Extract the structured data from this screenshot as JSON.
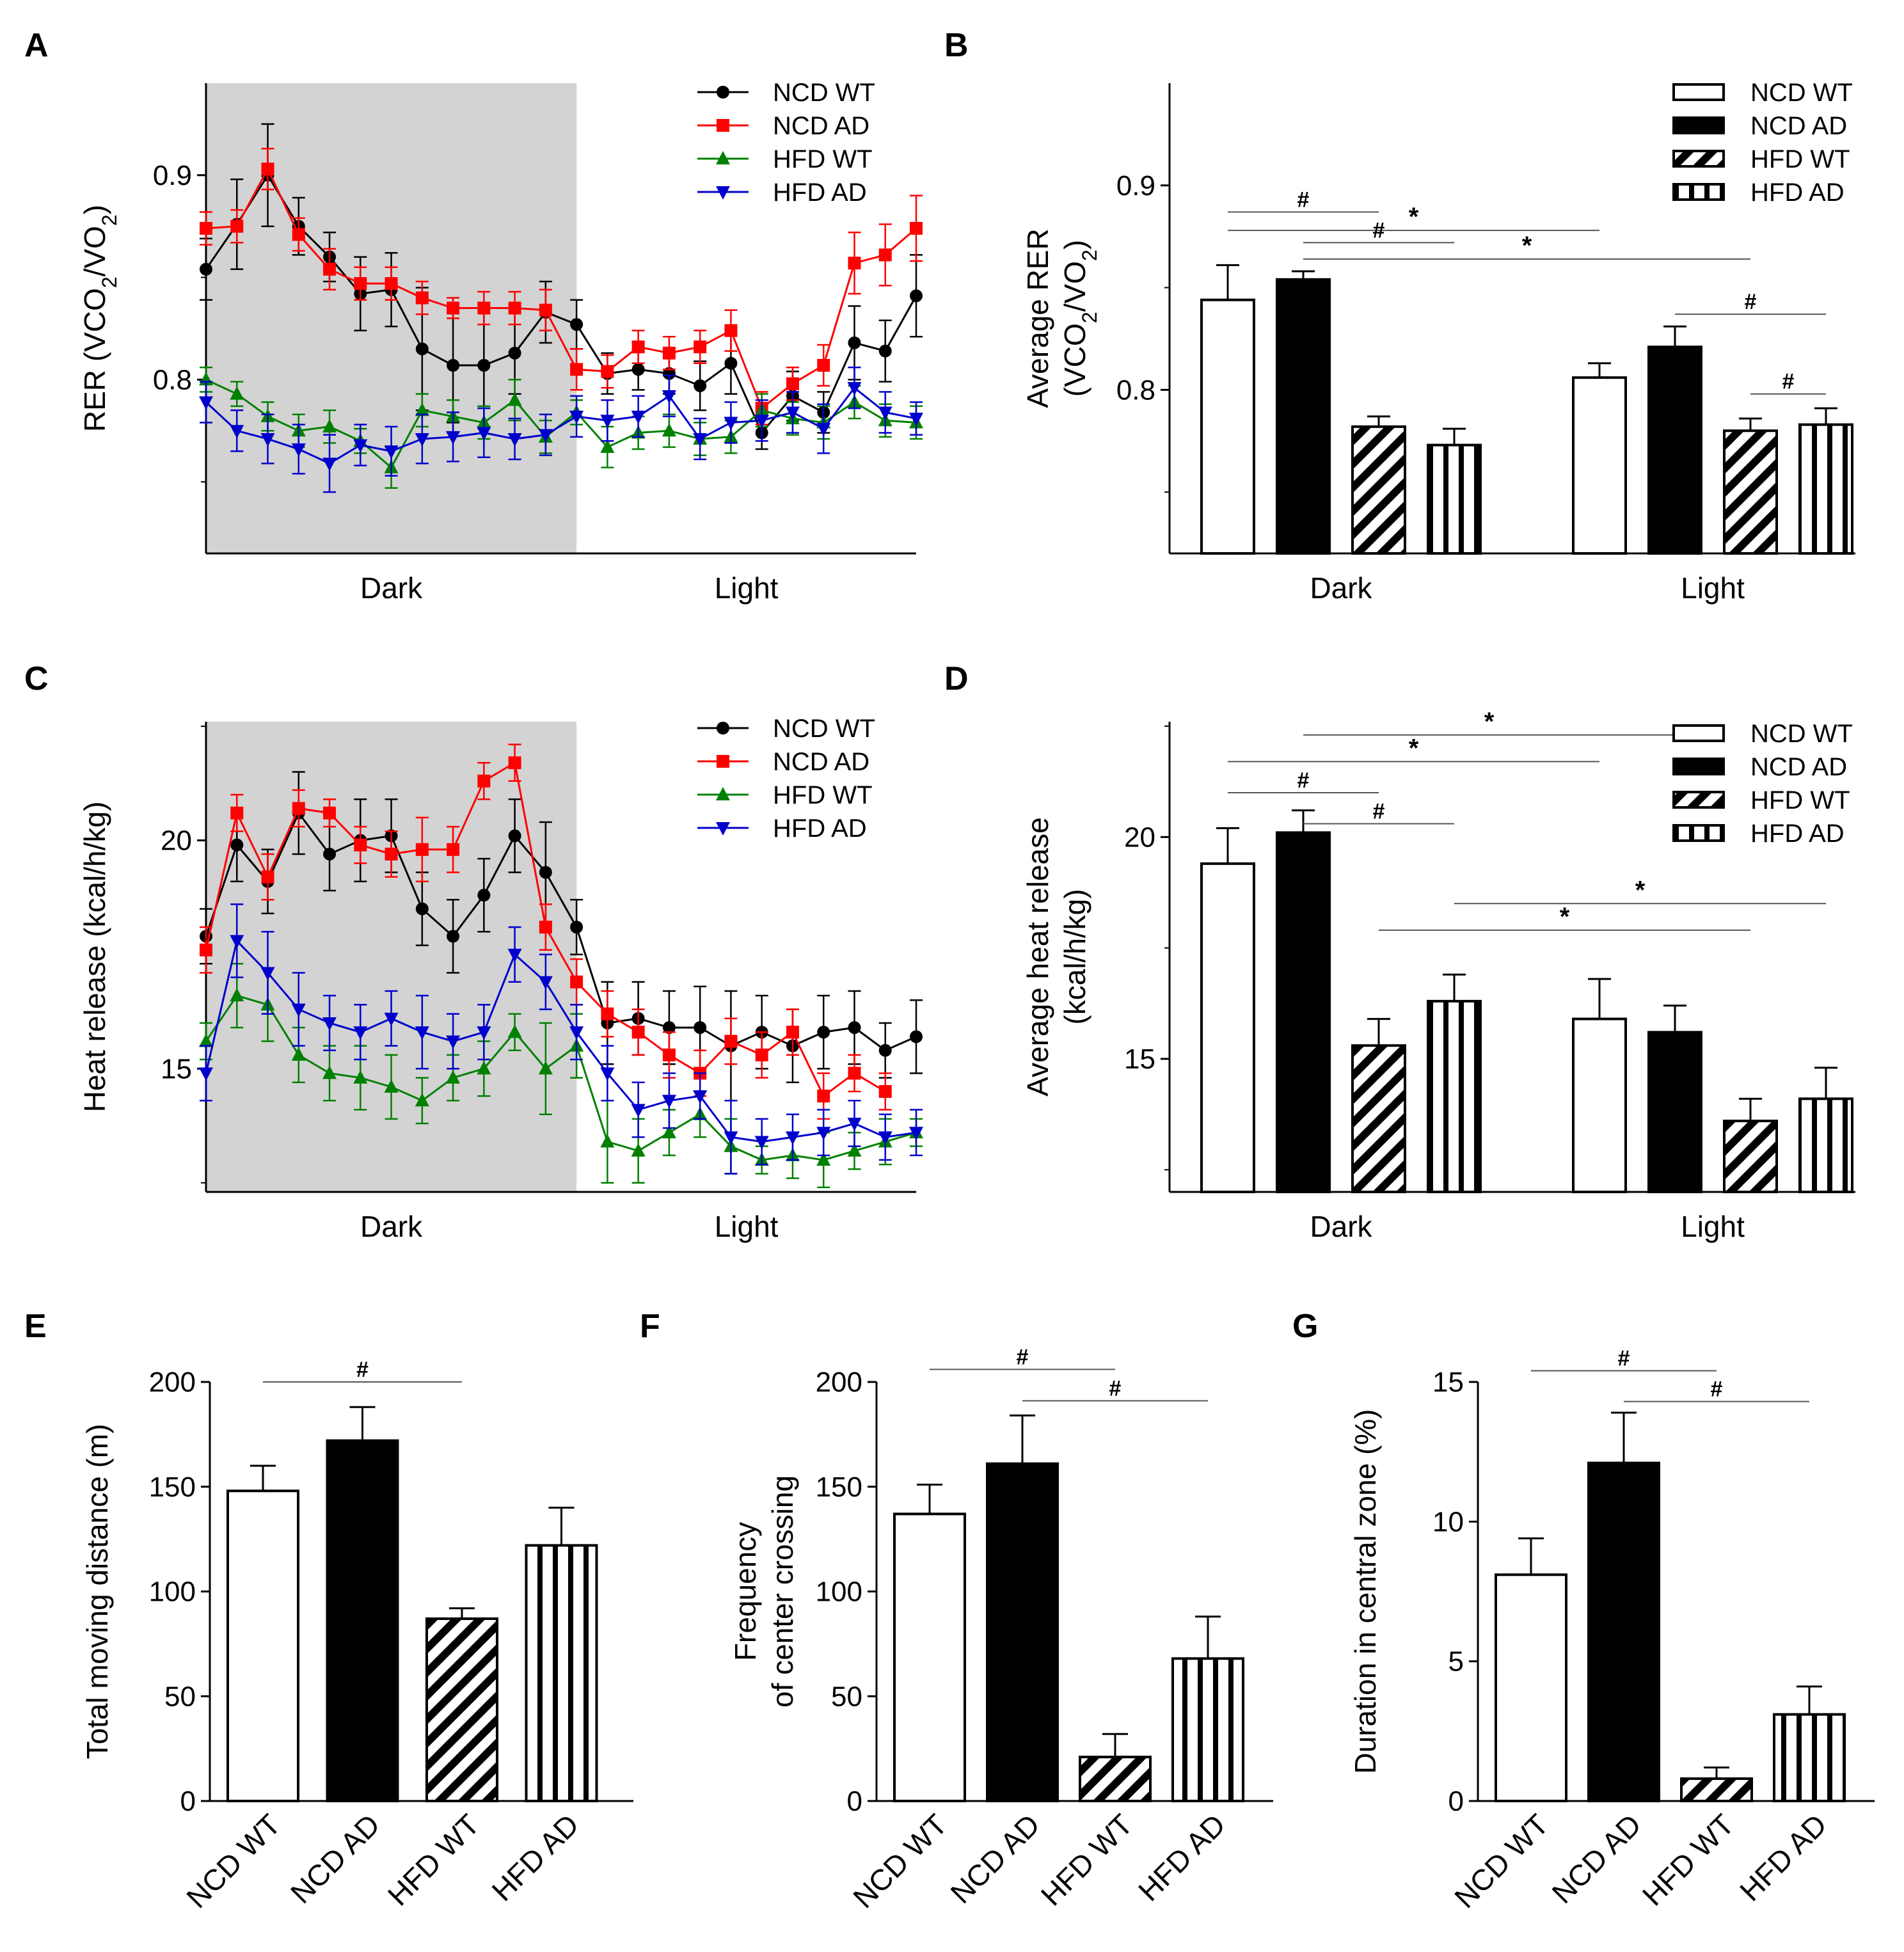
{
  "chart_data": [
    {
      "panel": "A",
      "type": "line",
      "ylabel": "RER (VCO<sub>2</sub>/VO<sub>2</sub>)",
      "ylim": [
        0.715,
        0.945
      ],
      "yticks": [
        0.8,
        0.9
      ],
      "ytick_labels": [
        "0.8",
        "0.9"
      ],
      "phase_labels": [
        "Dark",
        "Light"
      ],
      "dark_points": 12,
      "n_points": 24,
      "series": [
        {
          "name": "NCD WT",
          "color": "#000000",
          "marker": "circle",
          "values": [
            0.854,
            0.876,
            0.9,
            0.875,
            0.86,
            0.842,
            0.844,
            0.815,
            0.807,
            0.807,
            0.813,
            0.833,
            0.827,
            0.803,
            0.805,
            0.803,
            0.797,
            0.808,
            0.774,
            0.792,
            0.784,
            0.818,
            0.814,
            0.841
          ],
          "errors": [
            0.015,
            0.022,
            0.025,
            0.014,
            0.012,
            0.018,
            0.018,
            0.03,
            0.028,
            0.03,
            0.02,
            0.015,
            0.012,
            0.01,
            0.01,
            0.01,
            0.012,
            0.015,
            0.008,
            0.012,
            0.01,
            0.018,
            0.015,
            0.02
          ]
        },
        {
          "name": "NCD AD",
          "color": "#ff0000",
          "marker": "square",
          "values": [
            0.874,
            0.875,
            0.903,
            0.871,
            0.854,
            0.847,
            0.847,
            0.84,
            0.835,
            0.835,
            0.835,
            0.834,
            0.805,
            0.804,
            0.816,
            0.813,
            0.816,
            0.824,
            0.786,
            0.798,
            0.807,
            0.857,
            0.861,
            0.874
          ],
          "errors": [
            0.008,
            0.008,
            0.01,
            0.008,
            0.01,
            0.008,
            0.008,
            0.008,
            0.005,
            0.008,
            0.008,
            0.01,
            0.01,
            0.008,
            0.008,
            0.008,
            0.008,
            0.01,
            0.008,
            0.008,
            0.01,
            0.015,
            0.015,
            0.016
          ]
        },
        {
          "name": "HFD WT",
          "color": "#008000",
          "marker": "triangle-up",
          "values": [
            0.8,
            0.793,
            0.782,
            0.775,
            0.777,
            0.77,
            0.757,
            0.785,
            0.782,
            0.779,
            0.79,
            0.772,
            0.784,
            0.767,
            0.774,
            0.775,
            0.771,
            0.772,
            0.785,
            0.781,
            0.779,
            0.789,
            0.78,
            0.779
          ],
          "errors": [
            0.006,
            0.006,
            0.007,
            0.008,
            0.008,
            0.006,
            0.01,
            0.008,
            0.008,
            0.008,
            0.01,
            0.008,
            0.006,
            0.01,
            0.008,
            0.008,
            0.008,
            0.008,
            0.008,
            0.008,
            0.008,
            0.008,
            0.008,
            0.008
          ]
        },
        {
          "name": "HFD AD",
          "color": "#0000cc",
          "marker": "triangle-down",
          "values": [
            0.789,
            0.775,
            0.771,
            0.766,
            0.759,
            0.768,
            0.765,
            0.771,
            0.772,
            0.774,
            0.771,
            0.773,
            0.782,
            0.78,
            0.782,
            0.792,
            0.771,
            0.779,
            0.78,
            0.784,
            0.776,
            0.796,
            0.784,
            0.781
          ],
          "errors": [
            0.01,
            0.01,
            0.012,
            0.012,
            0.014,
            0.01,
            0.012,
            0.012,
            0.012,
            0.012,
            0.01,
            0.01,
            0.01,
            0.01,
            0.01,
            0.01,
            0.01,
            0.01,
            0.01,
            0.01,
            0.012,
            0.01,
            0.01,
            0.008
          ]
        }
      ]
    },
    {
      "panel": "B",
      "type": "bar",
      "ylabel_lines": [
        "Average RER",
        "(VCO<sub>2</sub>/VO<sub>2</sub>)"
      ],
      "ylim": [
        0.72,
        0.95
      ],
      "yticks": [
        0.8,
        0.9
      ],
      "ytick_labels": [
        "0.8",
        "0.9"
      ],
      "categories": [
        "Dark",
        "Light"
      ],
      "series": [
        {
          "name": "NCD WT",
          "fill": "white",
          "values": [
            0.844,
            0.806
          ],
          "errors": [
            0.017,
            0.007
          ]
        },
        {
          "name": "NCD AD",
          "fill": "black",
          "values": [
            0.854,
            0.821
          ],
          "errors": [
            0.004,
            0.01
          ]
        },
        {
          "name": "HFD WT",
          "fill": "diagonal",
          "values": [
            0.782,
            0.78
          ],
          "errors": [
            0.005,
            0.006
          ]
        },
        {
          "name": "HFD AD",
          "fill": "vertical",
          "values": [
            0.773,
            0.783
          ],
          "errors": [
            0.008,
            0.008
          ]
        }
      ],
      "annotations": [
        {
          "text": "*",
          "from": [
            0,
            1
          ],
          "to": [
            1,
            2
          ],
          "y": 0.864
        },
        {
          "text": "*",
          "from": [
            0,
            0
          ],
          "to": [
            1,
            0
          ],
          "y": 0.878
        },
        {
          "text": "#",
          "from": [
            0,
            0
          ],
          "to": [
            0,
            2
          ],
          "y": 0.887
        },
        {
          "text": "#",
          "from": [
            0,
            1
          ],
          "to": [
            0,
            3
          ],
          "y": 0.872
        },
        {
          "text": "#",
          "from": [
            1,
            1
          ],
          "to": [
            1,
            3
          ],
          "y": 0.837
        },
        {
          "text": "#",
          "from": [
            1,
            2
          ],
          "to": [
            1,
            3
          ],
          "y": 0.798
        }
      ]
    },
    {
      "panel": "C",
      "type": "line",
      "ylabel": "Heat release (kcal/h/kg)",
      "ylim": [
        12.3,
        22.6
      ],
      "yticks": [
        15,
        20
      ],
      "ytick_labels": [
        "15",
        "20"
      ],
      "phase_labels": [
        "Dark",
        "Light"
      ],
      "dark_points": 12,
      "n_points": 24,
      "series": [
        {
          "name": "NCD WT",
          "color": "#000000",
          "marker": "circle",
          "values": [
            17.9,
            19.9,
            19.1,
            20.6,
            19.7,
            20.0,
            20.1,
            18.5,
            17.9,
            18.8,
            20.1,
            19.3,
            18.1,
            16.0,
            16.1,
            15.9,
            15.9,
            15.5,
            15.8,
            15.5,
            15.8,
            15.9,
            15.4,
            15.7
          ],
          "errors": [
            0.6,
            0.8,
            0.7,
            0.9,
            0.8,
            0.9,
            0.8,
            0.8,
            0.8,
            0.8,
            0.8,
            1.1,
            0.6,
            0.9,
            0.8,
            0.8,
            0.9,
            1.2,
            0.8,
            0.8,
            0.8,
            0.8,
            0.6,
            0.8
          ]
        },
        {
          "name": "NCD AD",
          "color": "#ff0000",
          "marker": "square",
          "values": [
            17.6,
            20.6,
            19.2,
            20.7,
            20.6,
            19.9,
            19.7,
            19.8,
            19.8,
            21.3,
            21.7,
            18.1,
            16.9,
            16.2,
            15.8,
            15.3,
            14.9,
            15.6,
            15.3,
            15.8,
            14.4,
            14.9,
            14.5,
            null
          ],
          "errors": [
            0.5,
            0.4,
            0.5,
            0.4,
            0.3,
            0.4,
            0.5,
            0.7,
            0.5,
            0.4,
            0.4,
            0.5,
            0.5,
            0.5,
            0.5,
            0.5,
            0.5,
            0.5,
            0.5,
            0.5,
            0.5,
            0.4,
            0.4,
            0
          ]
        },
        {
          "name": "HFD WT",
          "color": "#008000",
          "marker": "triangle-up",
          "values": [
            15.6,
            16.6,
            16.4,
            15.3,
            14.9,
            14.8,
            14.6,
            14.3,
            14.8,
            15.0,
            15.8,
            15.0,
            15.5,
            13.4,
            13.2,
            13.6,
            14.0,
            13.3,
            13.0,
            13.1,
            13.0,
            13.2,
            13.4,
            13.6
          ],
          "errors": [
            0.4,
            0.7,
            0.8,
            0.6,
            0.6,
            0.7,
            0.7,
            0.5,
            0.5,
            0.6,
            0.4,
            1.0,
            0.7,
            0.9,
            0.7,
            0.5,
            0.5,
            0.6,
            0.3,
            0.5,
            0.6,
            0.4,
            0.5,
            0.3
          ]
        },
        {
          "name": "HFD AD",
          "color": "#0000cc",
          "marker": "triangle-down",
          "values": [
            14.9,
            17.8,
            17.1,
            16.3,
            16.0,
            15.8,
            16.1,
            15.8,
            15.6,
            15.8,
            17.5,
            16.9,
            15.8,
            14.9,
            14.1,
            14.3,
            14.4,
            13.5,
            13.4,
            13.5,
            13.6,
            13.8,
            13.5,
            13.6
          ],
          "errors": [
            0.6,
            0.8,
            0.9,
            0.8,
            0.6,
            0.6,
            0.6,
            0.8,
            0.6,
            0.6,
            0.6,
            0.6,
            0.6,
            0.6,
            0.6,
            0.6,
            0.5,
            0.8,
            0.5,
            0.5,
            0.5,
            0.5,
            0.5,
            0.5
          ]
        }
      ]
    },
    {
      "panel": "D",
      "type": "bar",
      "ylabel_lines": [
        "Average heat release",
        "(kcal/h/kg)"
      ],
      "ylim": [
        12.0,
        22.6
      ],
      "yticks": [
        15,
        20
      ],
      "ytick_labels": [
        "15",
        "20"
      ],
      "categories": [
        "Dark",
        "Light"
      ],
      "series": [
        {
          "name": "NCD WT",
          "fill": "white",
          "values": [
            19.4,
            15.9
          ],
          "errors": [
            0.8,
            0.9
          ]
        },
        {
          "name": "NCD AD",
          "fill": "black",
          "values": [
            20.1,
            15.6
          ],
          "errors": [
            0.5,
            0.6
          ]
        },
        {
          "name": "HFD WT",
          "fill": "diagonal",
          "values": [
            15.3,
            13.6
          ],
          "errors": [
            0.6,
            0.5
          ]
        },
        {
          "name": "HFD AD",
          "fill": "vertical",
          "values": [
            16.3,
            14.1
          ],
          "errors": [
            0.6,
            0.7
          ]
        }
      ],
      "annotations": [
        {
          "text": "*",
          "from": [
            0,
            1
          ],
          "to": [
            1,
            1
          ],
          "y": 22.3
        },
        {
          "text": "*",
          "from": [
            0,
            0
          ],
          "to": [
            1,
            0
          ],
          "y": 21.7
        },
        {
          "text": "#",
          "from": [
            0,
            0
          ],
          "to": [
            0,
            2
          ],
          "y": 21.0
        },
        {
          "text": "#",
          "from": [
            0,
            1
          ],
          "to": [
            0,
            3
          ],
          "y": 20.3
        },
        {
          "text": "*",
          "from": [
            0,
            3
          ],
          "to": [
            1,
            3
          ],
          "y": 18.5
        },
        {
          "text": "*",
          "from": [
            0,
            2
          ],
          "to": [
            1,
            2
          ],
          "y": 17.9
        }
      ]
    },
    {
      "panel": "E",
      "type": "bar",
      "ylabel": "Total moving distance (m)",
      "ylim": [
        0,
        200
      ],
      "yticks": [
        0,
        50,
        100,
        150,
        200
      ],
      "ytick_labels": [
        "0",
        "50",
        "100",
        "150",
        "200"
      ],
      "categories": [
        "NCD WT",
        "NCD AD",
        "HFD WT",
        "HFD AD"
      ],
      "fills": [
        "white",
        "black",
        "diagonal",
        "vertical"
      ],
      "values": [
        148,
        172,
        87,
        122
      ],
      "errors": [
        12,
        16,
        5,
        18
      ],
      "annotations": [
        {
          "text": "#",
          "from": 0,
          "to": 2,
          "y": 200
        }
      ]
    },
    {
      "panel": "F",
      "type": "bar",
      "ylabel_lines": [
        "Frequency",
        "of center crossing"
      ],
      "ylim": [
        0,
        200
      ],
      "yticks": [
        0,
        50,
        100,
        150,
        200
      ],
      "ytick_labels": [
        "0",
        "50",
        "100",
        "150",
        "200"
      ],
      "categories": [
        "NCD WT",
        "NCD AD",
        "HFD WT",
        "HFD AD"
      ],
      "fills": [
        "white",
        "black",
        "diagonal",
        "vertical"
      ],
      "values": [
        137,
        161,
        21,
        68
      ],
      "errors": [
        14,
        23,
        11,
        20
      ],
      "annotations": [
        {
          "text": "#",
          "from": 0,
          "to": 2,
          "y": 206
        },
        {
          "text": "#",
          "from": 1,
          "to": 3,
          "y": 191
        }
      ]
    },
    {
      "panel": "G",
      "type": "bar",
      "ylabel": "Duration in central zone (%)",
      "ylim": [
        0,
        15
      ],
      "yticks": [
        0,
        5,
        10,
        15
      ],
      "ytick_labels": [
        "0",
        "5",
        "10",
        "15"
      ],
      "categories": [
        "NCD WT",
        "NCD AD",
        "HFD WT",
        "HFD AD"
      ],
      "fills": [
        "white",
        "black",
        "diagonal",
        "vertical"
      ],
      "values": [
        8.1,
        12.1,
        0.8,
        3.1
      ],
      "errors": [
        1.3,
        1.8,
        0.4,
        1.0
      ],
      "annotations": [
        {
          "text": "#",
          "from": 0,
          "to": 2,
          "y": 15.4
        },
        {
          "text": "#",
          "from": 1,
          "to": 3,
          "y": 14.3
        }
      ]
    }
  ]
}
